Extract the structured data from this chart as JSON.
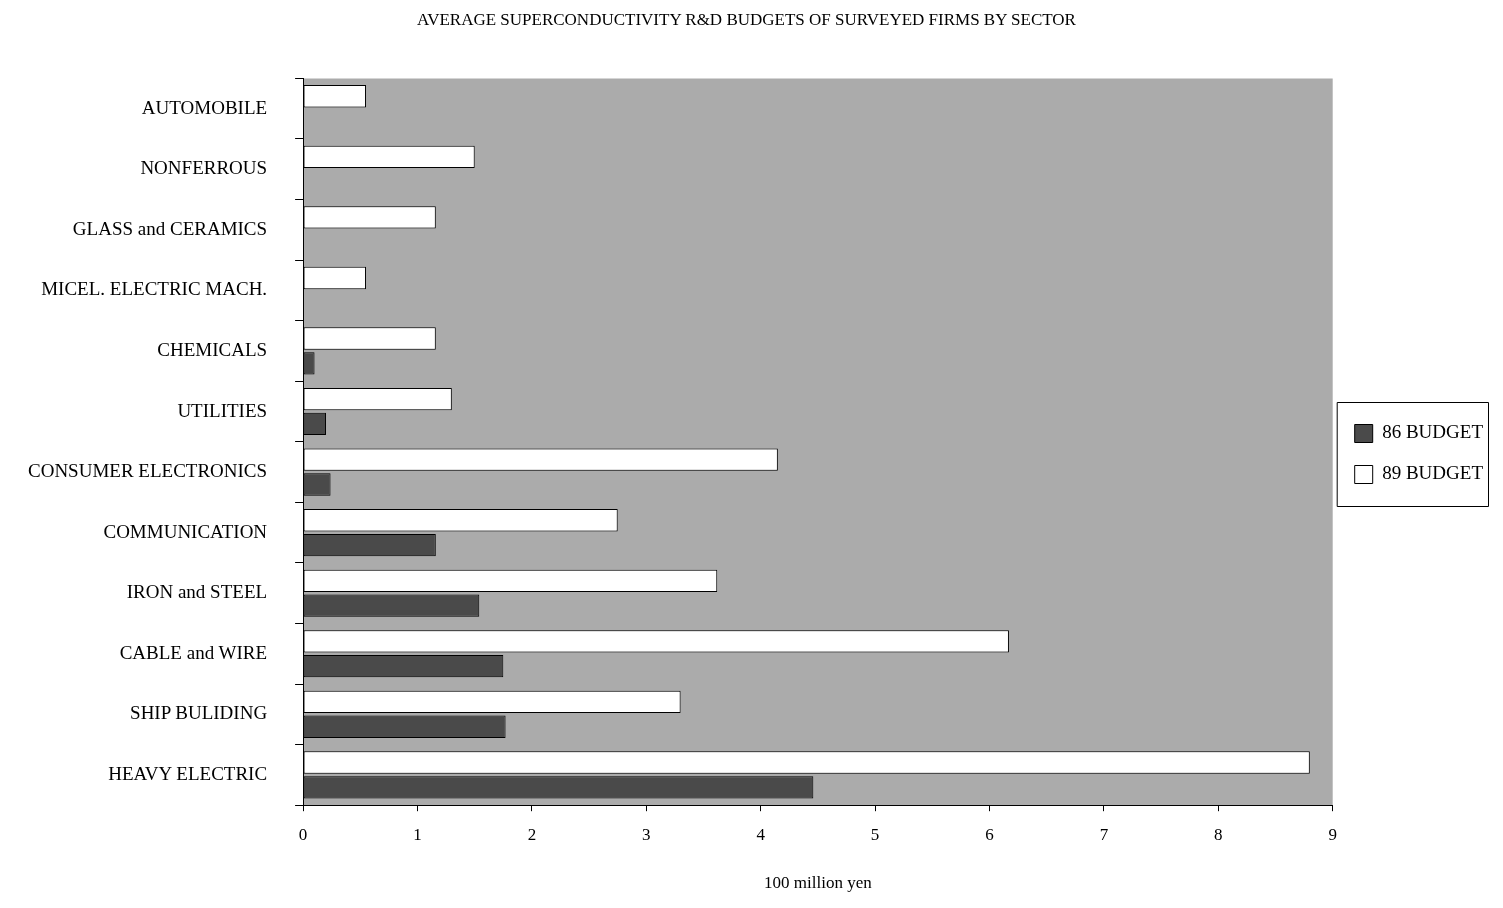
{
  "chart_data": {
    "type": "bar",
    "orientation": "horizontal",
    "title": "AVERAGE SUPERCONDUCTIVITY R&D BUDGETS OF SURVEYED FIRMS BY SECTOR",
    "xlabel": "100 million yen",
    "categories": [
      "AUTOMOBILE",
      "NONFERROUS",
      "GLASS and CERAMICS",
      "MICEL. ELECTRIC MACH.",
      "CHEMICALS",
      "UTILITIES",
      "CONSUMER ELECTRONICS",
      "COMMUNICATION",
      "IRON and STEEL",
      "CABLE and WIRE",
      "SHIP BULIDING",
      "HEAVY ELECTRIC"
    ],
    "series": [
      {
        "name": "89 BUDGET",
        "color": "#ffffff",
        "values": [
          0.55,
          1.5,
          1.16,
          0.55,
          1.16,
          1.3,
          4.15,
          2.75,
          3.62,
          6.17,
          3.3,
          8.8
        ]
      },
      {
        "name": "86 BUDGET",
        "color": "#4a4a4a",
        "values": [
          null,
          null,
          null,
          null,
          0.1,
          0.2,
          0.24,
          1.16,
          1.54,
          1.75,
          1.77,
          4.46
        ]
      }
    ],
    "xlim": [
      0,
      9
    ],
    "xticks": [
      0,
      1,
      2,
      3,
      4,
      5,
      6,
      7,
      8,
      9
    ],
    "grid": false,
    "legend": "right"
  }
}
